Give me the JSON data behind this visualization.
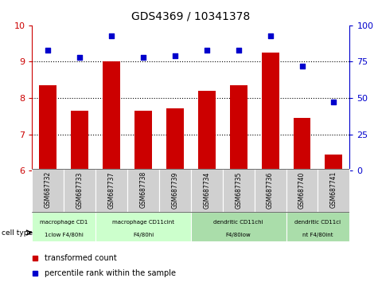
{
  "title": "GDS4369 / 10341378",
  "samples": [
    "GSM687732",
    "GSM687733",
    "GSM687737",
    "GSM687738",
    "GSM687739",
    "GSM687734",
    "GSM687735",
    "GSM687736",
    "GSM687740",
    "GSM687741"
  ],
  "bar_values": [
    8.35,
    7.65,
    9.0,
    7.65,
    7.72,
    8.2,
    8.35,
    9.25,
    7.45,
    6.45
  ],
  "dot_values": [
    83,
    78,
    93,
    78,
    79,
    83,
    83,
    93,
    72,
    47
  ],
  "bar_color": "#cc0000",
  "dot_color": "#0000cc",
  "ylim_left": [
    6,
    10
  ],
  "ylim_right": [
    0,
    100
  ],
  "yticks_left": [
    6,
    7,
    8,
    9,
    10
  ],
  "yticks_right": [
    0,
    25,
    50,
    75,
    100
  ],
  "grid_lines": [
    7,
    8,
    9
  ],
  "groups": [
    {
      "label": "macrophage CD1\n1clow F4/80hi",
      "start": 0,
      "end": 2,
      "color": "#ccffcc"
    },
    {
      "label": "macrophage CD11cint\nF4/80hi",
      "start": 2,
      "end": 5,
      "color": "#ccffcc"
    },
    {
      "label": "dendritic CD11chi\nF4/80low",
      "start": 5,
      "end": 8,
      "color": "#aaddaa"
    },
    {
      "label": "dendritic CD11ci\nnt F4/80int",
      "start": 8,
      "end": 10,
      "color": "#aaddaa"
    }
  ],
  "sample_box_color": "#d0d0d0",
  "legend_bar_label": "transformed count",
  "legend_dot_label": "percentile rank within the sample",
  "cell_type_label": "cell type",
  "bar_width": 0.55,
  "main_axes": [
    0.085,
    0.395,
    0.84,
    0.515
  ],
  "xtick_axes": [
    0.085,
    0.245,
    0.84,
    0.155
  ],
  "grp_axes": [
    0.085,
    0.145,
    0.84,
    0.105
  ]
}
